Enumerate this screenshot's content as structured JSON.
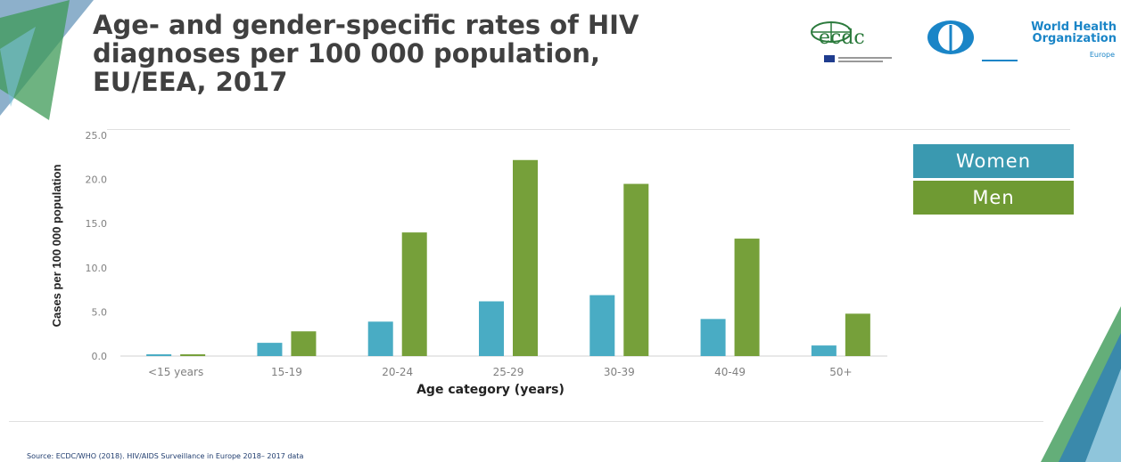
{
  "title_lines": [
    "Age- and gender-specific rates of HIV",
    "diagnoses per 100 000 population,",
    "EU/EEA, 2017"
  ],
  "logos": {
    "ecdc": "ecdc",
    "who_line1": "World Health",
    "who_line2": "Organization",
    "who_sub": "Europe"
  },
  "source": "Source: ECDC/WHO (2018). HIV/AIDS Surveillance in Europe 2018– 2017 data",
  "colors": {
    "women": "#49acc4",
    "men": "#76a03a",
    "legend_women": "#3a99b0",
    "legend_men": "#6f9a33"
  },
  "chart_data": {
    "type": "bar",
    "categories": [
      "<15 years",
      "15-19",
      "20-24",
      "25-29",
      "30-39",
      "40-49",
      "50+"
    ],
    "series": [
      {
        "name": "Women",
        "values": [
          0.2,
          1.5,
          3.9,
          6.2,
          6.9,
          4.2,
          1.2
        ]
      },
      {
        "name": "Men",
        "values": [
          0.2,
          2.8,
          14.0,
          22.2,
          19.5,
          13.3,
          4.8
        ]
      }
    ],
    "title": "",
    "xlabel": "Age category (years)",
    "ylabel": "Cases per 100 000 population",
    "ylim": [
      0,
      25
    ],
    "yticks": [
      "0.0",
      "5.0",
      "10.0",
      "15.0",
      "20.0",
      "25.0"
    ],
    "legend": "top-right",
    "grid": false
  }
}
